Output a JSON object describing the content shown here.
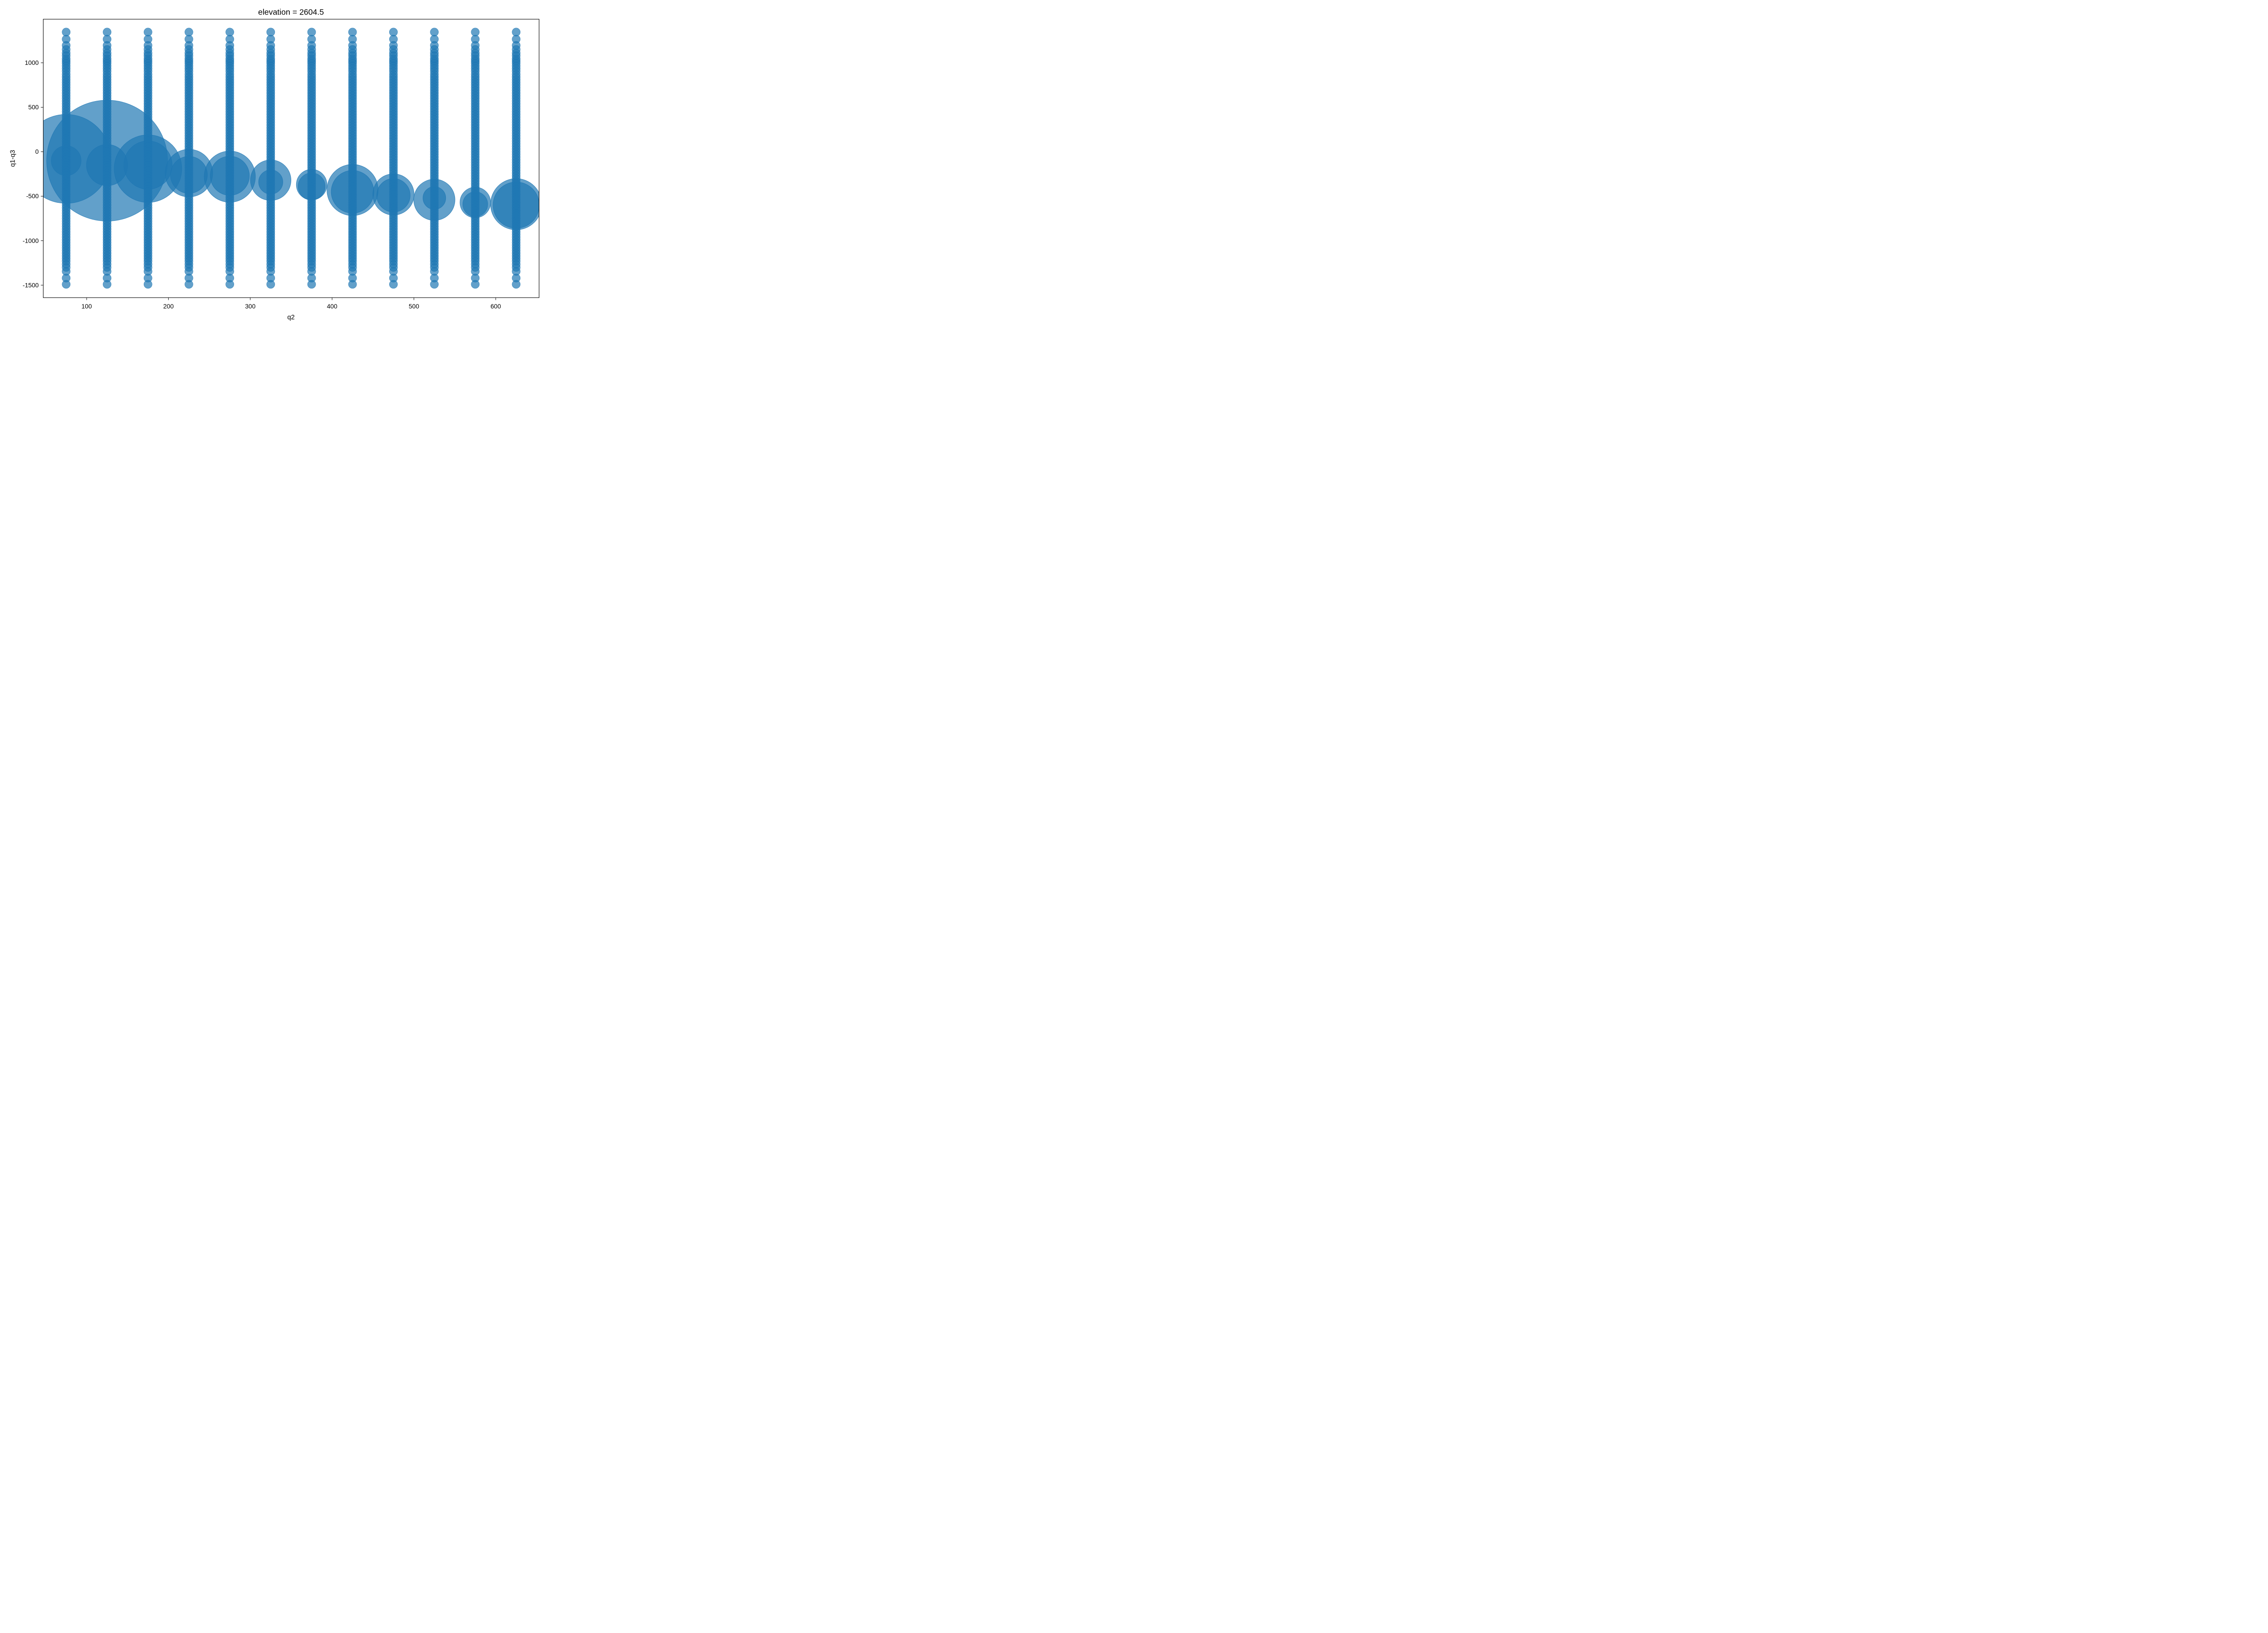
{
  "chart_data": {
    "type": "scatter",
    "title": "elevation = 2604.5",
    "xlabel": "q2",
    "ylabel": "q1-q3",
    "xlim": [
      47,
      653
    ],
    "ylim": [
      -1640,
      1490
    ],
    "xticks": [
      100,
      200,
      300,
      400,
      500,
      600
    ],
    "yticks": [
      1000,
      500,
      0,
      -500,
      -1000,
      -1500
    ],
    "ytick_labels": [
      "1000",
      "500",
      "0",
      "-500",
      "-1000",
      "-1500"
    ],
    "grid": false,
    "legend": "none",
    "marker_color": "#1f77b4",
    "marker_alpha": 0.7,
    "q2_levels": [
      75,
      125,
      175,
      225,
      275,
      325,
      375,
      425,
      475,
      525,
      575,
      625
    ],
    "column_points": {
      "q1_minus_q3_values": [
        1345,
        1265,
        1195,
        1150,
        1110,
        1080,
        1045,
        1020,
        995,
        965,
        935,
        905,
        870,
        840,
        810,
        780,
        750,
        720,
        690,
        660,
        630,
        600,
        570,
        540,
        510,
        480,
        450,
        420,
        390,
        360,
        330,
        300,
        270,
        240,
        210,
        180,
        150,
        120,
        90,
        60,
        30,
        0,
        -30,
        -60,
        -90,
        -120,
        -150,
        -180,
        -210,
        -240,
        -270,
        -300,
        -330,
        -360,
        -390,
        -420,
        -450,
        -480,
        -510,
        -540,
        -570,
        -600,
        -630,
        -660,
        -690,
        -720,
        -750,
        -780,
        -810,
        -840,
        -870,
        -900,
        -930,
        -960,
        -990,
        -1020,
        -1050,
        -1080,
        -1110,
        -1140,
        -1170,
        -1200,
        -1230,
        -1265,
        -1300,
        -1345,
        -1420,
        -1490
      ],
      "marker_radius": 11
    },
    "bubbles": [
      {
        "x": 75,
        "y": -80,
        "r": 125
      },
      {
        "x": 75,
        "y": -100,
        "r": 42
      },
      {
        "x": 125,
        "y": -100,
        "r": 170
      },
      {
        "x": 125,
        "y": -150,
        "r": 58
      },
      {
        "x": 175,
        "y": -190,
        "r": 95
      },
      {
        "x": 175,
        "y": -150,
        "r": 68
      },
      {
        "x": 225,
        "y": -240,
        "r": 67
      },
      {
        "x": 225,
        "y": -260,
        "r": 52
      },
      {
        "x": 275,
        "y": -280,
        "r": 72
      },
      {
        "x": 275,
        "y": -270,
        "r": 55
      },
      {
        "x": 325,
        "y": -320,
        "r": 57
      },
      {
        "x": 325,
        "y": -340,
        "r": 34
      },
      {
        "x": 375,
        "y": -370,
        "r": 43
      },
      {
        "x": 375,
        "y": -390,
        "r": 38
      },
      {
        "x": 425,
        "y": -430,
        "r": 72
      },
      {
        "x": 425,
        "y": -450,
        "r": 60
      },
      {
        "x": 475,
        "y": -480,
        "r": 58
      },
      {
        "x": 475,
        "y": -490,
        "r": 47
      },
      {
        "x": 525,
        "y": -540,
        "r": 58
      },
      {
        "x": 525,
        "y": -520,
        "r": 32
      },
      {
        "x": 575,
        "y": -570,
        "r": 43
      },
      {
        "x": 575,
        "y": -590,
        "r": 35
      },
      {
        "x": 625,
        "y": -590,
        "r": 72
      },
      {
        "x": 625,
        "y": -600,
        "r": 65
      }
    ]
  }
}
